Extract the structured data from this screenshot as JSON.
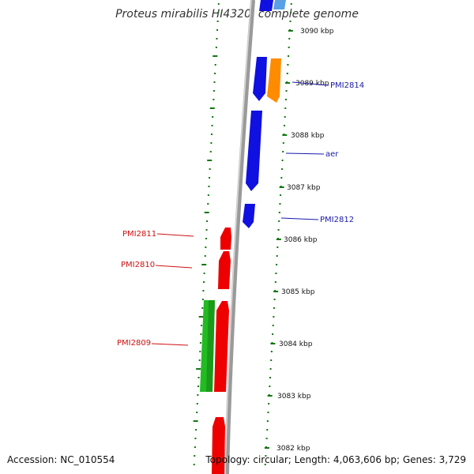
{
  "title": "Proteus mirabilis HI4320, complete genome",
  "footer": {
    "accession": "Accession: NC_010554",
    "summary": "Topology: circular; Length: 4,063,606 bp; Genes: 3,729"
  },
  "colors": {
    "blue": "#1010e0",
    "orange": "#ff8c00",
    "red": "#ee0000",
    "green": "#22bb22",
    "backbone": "#888888",
    "ticks": "#117711",
    "right_label": "#1a1aaa",
    "left_label": "#cc1111"
  },
  "ticks": [
    "3090 kbp",
    "3089 kbp",
    "3088 kbp",
    "3087 kbp",
    "3086 kbp",
    "3085 kbp",
    "3084 kbp",
    "3083 kbp",
    "3082 kbp"
  ],
  "gene_labels": {
    "PMI2814": "PMI2814",
    "aer": "aer",
    "PMI2812": "PMI2812",
    "PMI2811": "PMI2811",
    "PMI2810": "PMI2810",
    "PMI2809": "PMI2809"
  }
}
